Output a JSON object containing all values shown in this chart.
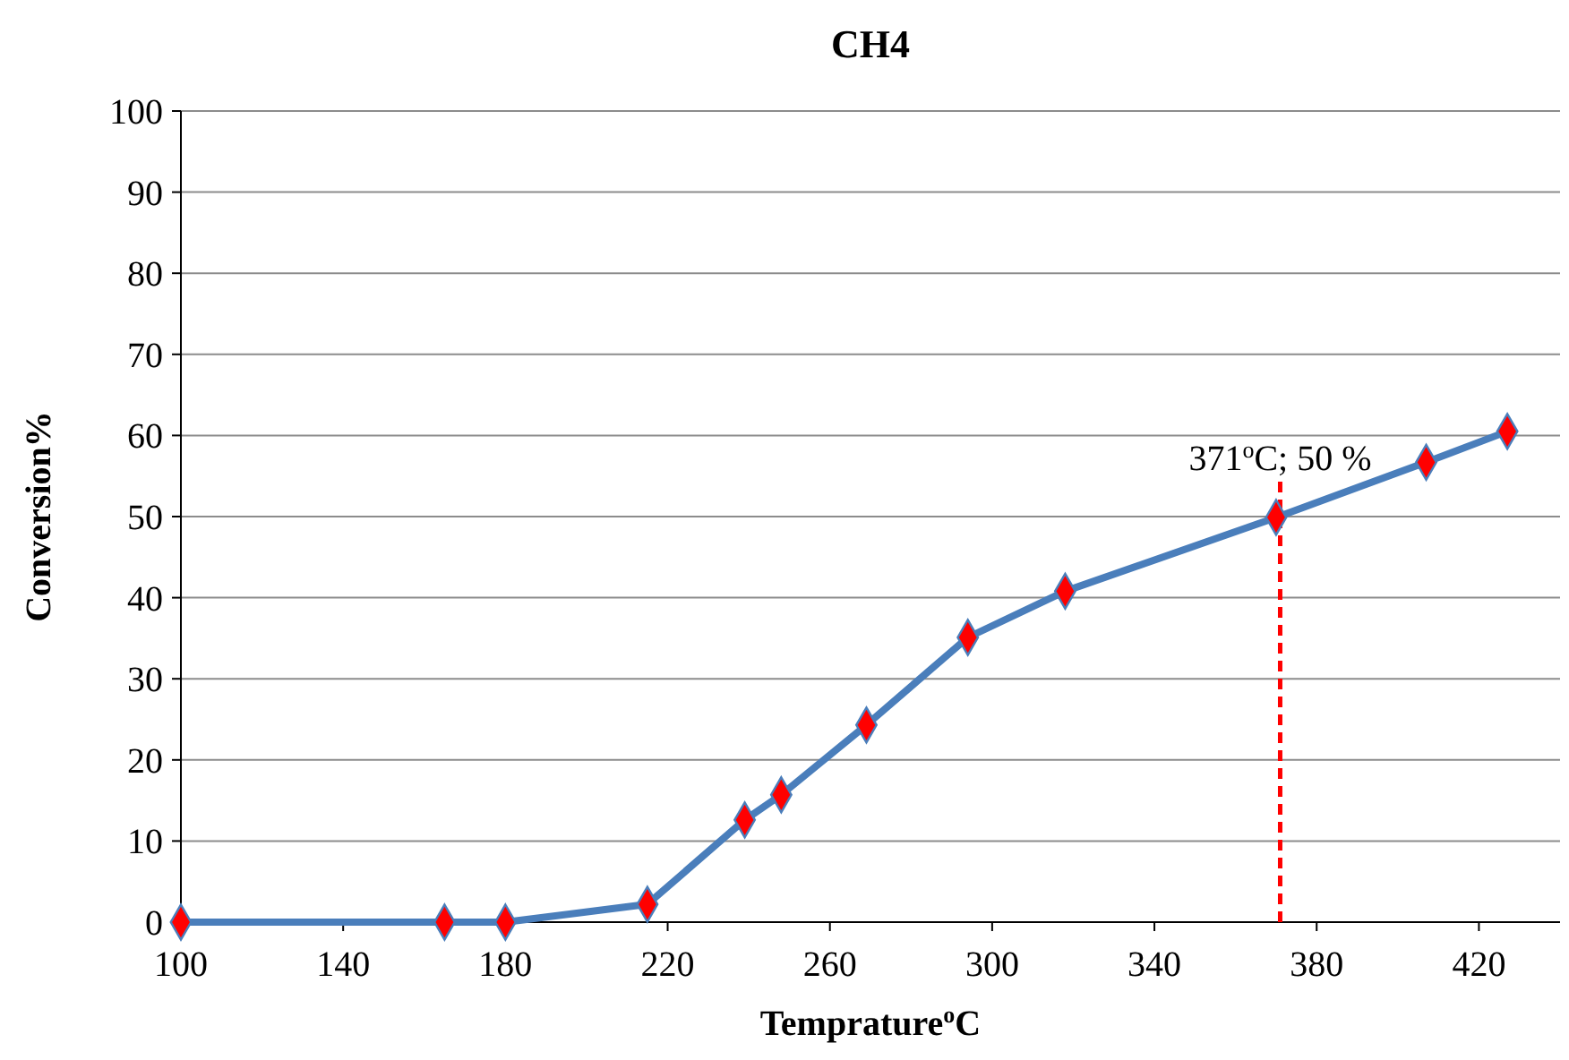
{
  "chart_data": {
    "type": "line",
    "title": "CH4",
    "xlabel": "Temprature$^{o}$C",
    "ylabel": "Conversion%",
    "x": [
      100,
      165,
      180,
      215,
      239,
      248,
      269,
      294,
      318,
      370,
      407,
      427
    ],
    "series": [
      {
        "color": "#4a7ebb",
        "values": [
          0,
          0,
          0,
          2.2,
          12.6,
          15.7,
          24.3,
          35.1,
          40.8,
          49.9,
          56.7,
          60.5
        ]
      }
    ],
    "xlim": [
      100,
      440
    ],
    "xticks": [
      100,
      140,
      180,
      220,
      260,
      300,
      340,
      380,
      420
    ],
    "ylim": [
      0,
      100
    ],
    "yticks": [
      0,
      10,
      20,
      30,
      40,
      50,
      60,
      70,
      80,
      90,
      100
    ],
    "grid": "y",
    "marker": "diamond",
    "line_style": "solid",
    "ref_lines": [
      {
        "axis": "x",
        "value": 371,
        "color": "#ff0000",
        "line_style": "dashed"
      }
    ],
    "annotations": [
      {
        "text": "371$^{o}$C; 50 %",
        "x": 371,
        "y": 50
      }
    ]
  }
}
